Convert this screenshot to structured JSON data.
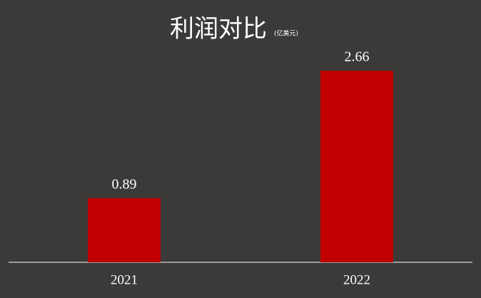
{
  "chart_data": {
    "type": "bar",
    "title": "利润对比",
    "subtitle": "(亿美元)",
    "categories": [
      "2021",
      "2022"
    ],
    "values": [
      0.89,
      2.66
    ],
    "color": "#c00000"
  }
}
